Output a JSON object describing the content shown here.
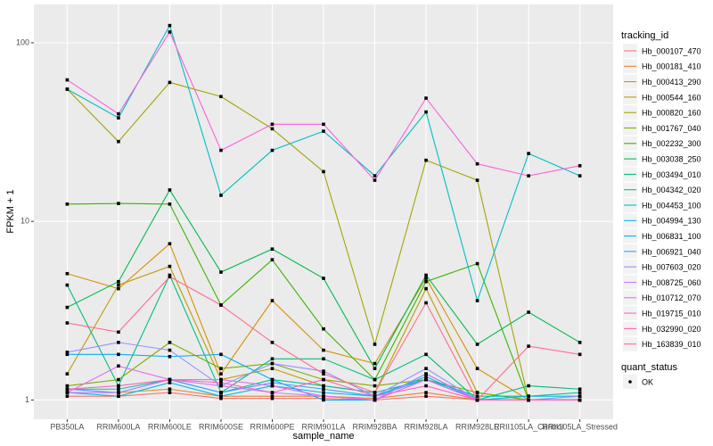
{
  "chart_data": {
    "type": "line",
    "log_scale_y": true,
    "grid": true,
    "x_label": "sample_name",
    "y_label": "FPKM + 1",
    "legend_title": "tracking_id",
    "shape_legend": {
      "title": "quant_status",
      "labels": [
        "OK"
      ]
    },
    "categories": [
      "PB350LA",
      "RRIM600LA",
      "RRIM600LE",
      "RRIM600SE",
      "RRIM600PE",
      "RRIM901LA",
      "RRIM928BA",
      "RRIM928LA",
      "RRIM928LE",
      "RRII105LA_Control",
      "RRII105LA_Stressed"
    ],
    "ylim": [
      0.78,
      164
    ],
    "yticks": [
      1,
      10,
      100
    ],
    "series": [
      {
        "name": "Hb_000107_470",
        "color": "#F8766D",
        "values": [
          1.05,
          1.05,
          1.1,
          1.02,
          1.02,
          1.02,
          1.0,
          1.05,
          1.0,
          1.0,
          1.0
        ]
      },
      {
        "name": "Hb_000181_410",
        "color": "#EA8331",
        "values": [
          1.1,
          1.1,
          1.15,
          1.05,
          1.05,
          1.05,
          1.02,
          1.1,
          1.0,
          1.0,
          1.0
        ]
      },
      {
        "name": "Hb_000413_290",
        "color": "#D89000",
        "values": [
          5.1,
          4.2,
          7.5,
          1.4,
          3.6,
          1.9,
          1.6,
          4.8,
          1.5,
          1.0,
          1.0
        ]
      },
      {
        "name": "Hb_000544_160",
        "color": "#C09B00",
        "values": [
          1.4,
          4.4,
          5.6,
          1.3,
          1.5,
          1.2,
          1.1,
          4.2,
          1.1,
          1.0,
          1.0
        ]
      },
      {
        "name": "Hb_000820_160",
        "color": "#A3A500",
        "values": [
          55,
          28,
          60,
          50,
          33,
          19,
          2.05,
          22,
          17,
          1.0,
          1.0
        ]
      },
      {
        "name": "Hb_001767_040",
        "color": "#7CAE00",
        "values": [
          1.2,
          1.3,
          2.1,
          1.5,
          1.6,
          1.3,
          1.2,
          1.3,
          1.1,
          1.0,
          1.0
        ]
      },
      {
        "name": "Hb_002232_300",
        "color": "#39B600",
        "values": [
          12.5,
          12.6,
          12.5,
          3.4,
          6.1,
          2.5,
          1.3,
          4.6,
          5.8,
          1.0,
          1.0
        ]
      },
      {
        "name": "Hb_003038_250",
        "color": "#00BB4E",
        "values": [
          3.3,
          4.6,
          15,
          5.2,
          7.0,
          4.8,
          1.5,
          5.0,
          2.05,
          3.1,
          2.1
        ]
      },
      {
        "name": "Hb_003494_010",
        "color": "#00BF7D",
        "values": [
          4.4,
          1.2,
          5.0,
          1.1,
          1.7,
          1.7,
          1.3,
          1.8,
          1.0,
          1.2,
          1.15
        ]
      },
      {
        "name": "Hb_004342_020",
        "color": "#00C1A3",
        "values": [
          1.15,
          1.15,
          1.3,
          1.1,
          1.3,
          1.2,
          1.1,
          1.3,
          1.05,
          1.05,
          1.1
        ]
      },
      {
        "name": "Hb_004453_100",
        "color": "#00BFC4",
        "values": [
          55,
          38,
          125,
          14,
          25,
          32,
          18,
          41,
          3.6,
          24,
          18
        ]
      },
      {
        "name": "Hb_004994_130",
        "color": "#00BAE0",
        "values": [
          1.1,
          1.05,
          1.25,
          1.05,
          1.2,
          1.1,
          1.05,
          1.35,
          1.0,
          1.05,
          1.05
        ]
      },
      {
        "name": "Hb_006831_100",
        "color": "#00B0F6",
        "values": [
          1.8,
          1.8,
          1.75,
          1.8,
          1.3,
          1.0,
          1.0,
          1.4,
          1.0,
          1.0,
          1.0
        ]
      },
      {
        "name": "Hb_006921_040",
        "color": "#35A2FF",
        "values": [
          1.15,
          1.1,
          1.3,
          1.1,
          1.25,
          1.15,
          1.05,
          1.3,
          1.0,
          1.0,
          1.0
        ]
      },
      {
        "name": "Hb_007603_020",
        "color": "#9590FF",
        "values": [
          1.85,
          2.1,
          1.9,
          1.2,
          1.6,
          1.45,
          1.05,
          1.5,
          1.0,
          1.0,
          1.05
        ]
      },
      {
        "name": "Hb_008725_060",
        "color": "#C77CFF",
        "values": [
          1.1,
          1.1,
          1.3,
          1.2,
          1.1,
          1.05,
          1.0,
          1.4,
          1.0,
          1.0,
          1.0
        ]
      },
      {
        "name": "Hb_010712_070",
        "color": "#E76BF3",
        "values": [
          1.1,
          1.55,
          1.3,
          1.3,
          1.2,
          1.05,
          1.0,
          1.3,
          1.0,
          1.0,
          1.0
        ]
      },
      {
        "name": "Hb_019715_010",
        "color": "#FA62DB",
        "values": [
          62,
          40,
          115,
          25,
          35,
          35,
          17,
          49,
          21,
          18,
          20.5
        ]
      },
      {
        "name": "Hb_032990_020",
        "color": "#FF62BC",
        "values": [
          1.15,
          1.2,
          1.3,
          1.25,
          1.1,
          1.3,
          1.05,
          1.2,
          1.0,
          1.0,
          1.0
        ]
      },
      {
        "name": "Hb_163839_010",
        "color": "#FF6C91",
        "values": [
          2.7,
          2.4,
          4.9,
          3.4,
          2.1,
          1.4,
          1.1,
          3.5,
          1.0,
          2.0,
          1.8
        ]
      }
    ]
  }
}
